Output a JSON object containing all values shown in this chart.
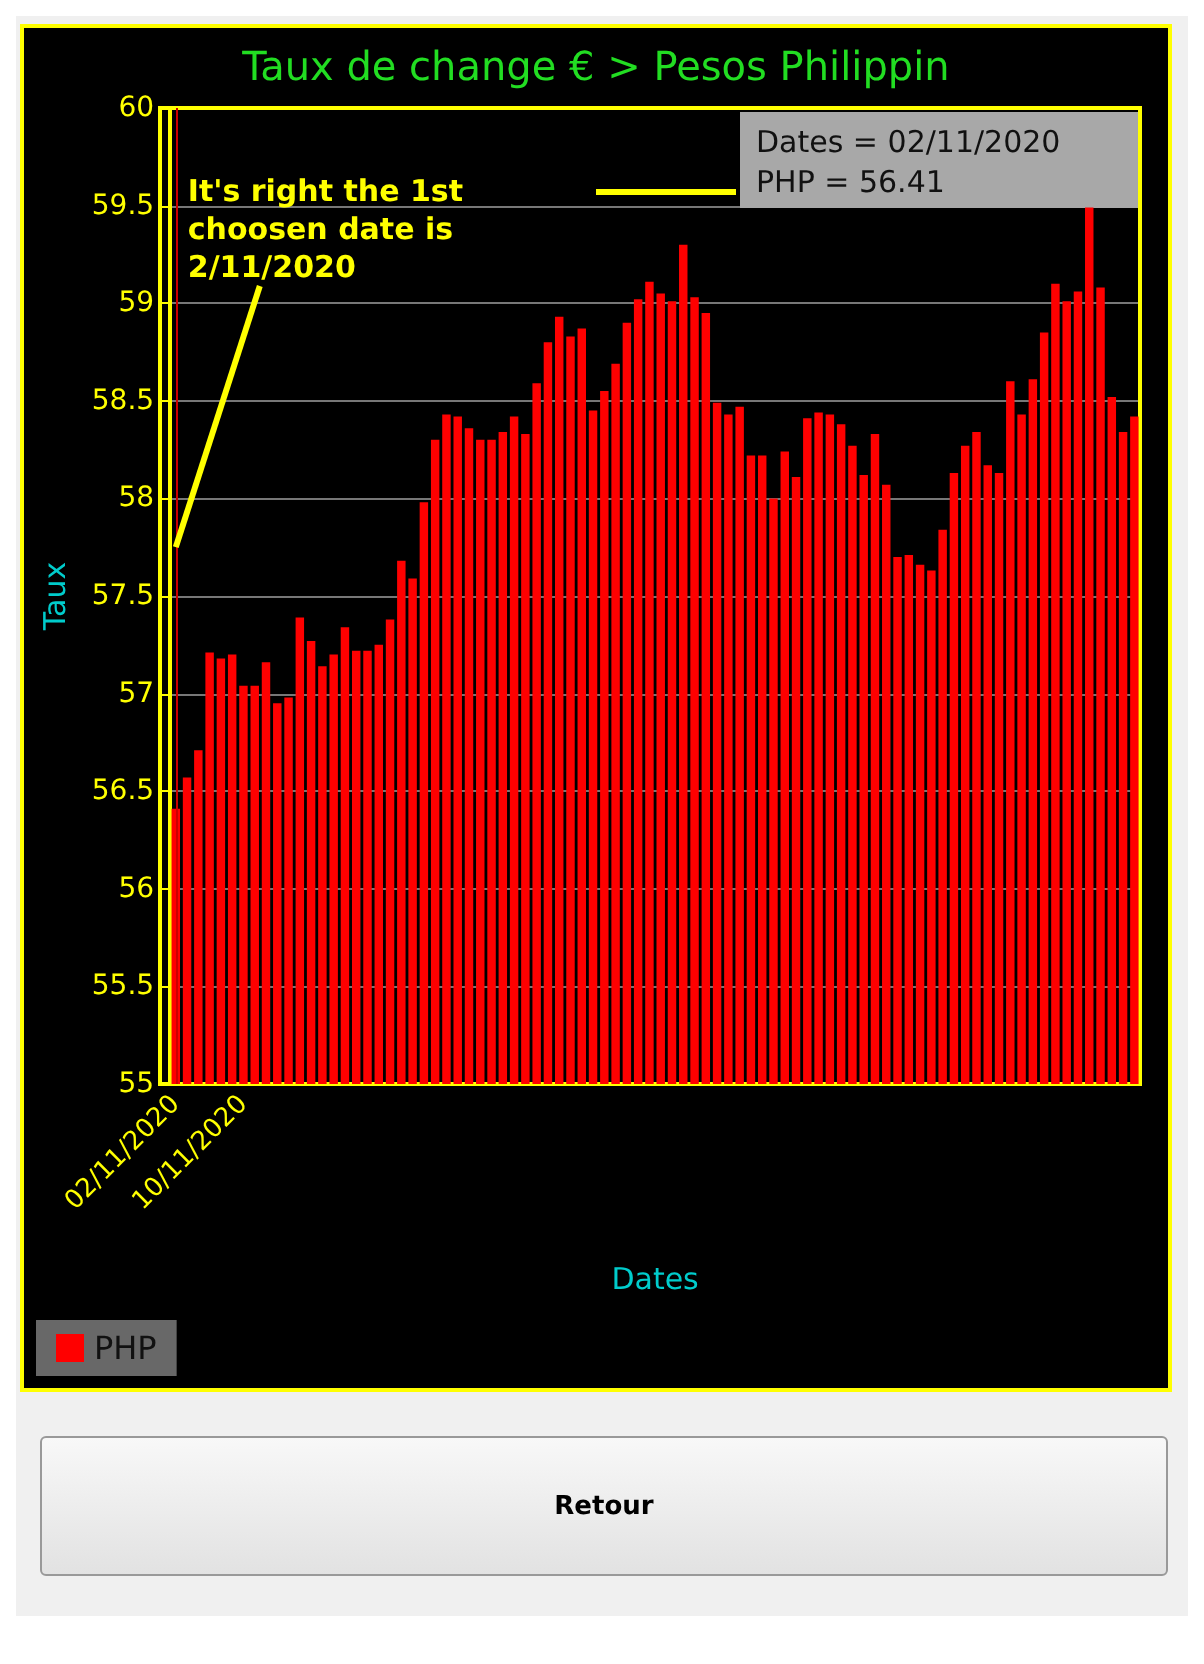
{
  "chart_data": {
    "type": "bar",
    "title": "Taux de change € > Pesos Philippin",
    "xlabel": "Dates",
    "ylabel": "Taux",
    "categories": [
      "02/11/2020",
      null,
      null,
      null,
      null,
      null,
      "10/11/2020",
      null,
      null,
      null,
      null,
      null,
      null,
      null,
      null,
      null,
      null,
      null,
      null,
      null,
      null,
      null,
      null,
      null,
      null,
      null,
      null,
      null,
      null,
      null,
      null,
      null,
      null,
      null,
      null,
      null,
      null,
      null,
      null,
      null,
      null,
      null,
      null,
      null,
      null,
      null,
      null,
      null,
      null,
      null,
      null,
      null,
      null,
      null,
      null,
      null,
      null,
      null,
      null,
      null,
      null,
      null,
      null,
      null,
      null,
      null,
      null,
      null,
      null,
      null,
      null,
      null,
      null,
      null,
      null,
      null,
      null,
      null,
      null,
      null,
      null,
      null,
      null,
      null,
      null,
      null
    ],
    "series": [
      {
        "name": "PHP",
        "color": "#ff0000",
        "values": [
          56.41,
          56.57,
          56.71,
          57.21,
          57.18,
          57.2,
          57.04,
          57.04,
          57.16,
          56.95,
          56.98,
          57.39,
          57.27,
          57.14,
          57.2,
          57.34,
          57.22,
          57.22,
          57.25,
          57.38,
          57.68,
          57.59,
          57.98,
          58.3,
          58.43,
          58.42,
          58.36,
          58.3,
          58.3,
          58.34,
          58.42,
          58.33,
          58.59,
          58.8,
          58.93,
          58.83,
          58.87,
          58.45,
          58.55,
          58.69,
          58.9,
          59.02,
          59.11,
          59.05,
          59.01,
          59.3,
          59.03,
          58.95,
          58.49,
          58.43,
          58.47,
          58.22,
          58.22,
          58.0,
          58.24,
          58.11,
          58.41,
          58.44,
          58.43,
          58.38,
          58.27,
          58.12,
          58.33,
          58.07,
          57.7,
          57.71,
          57.66,
          57.63,
          57.84,
          58.13,
          58.27,
          58.34,
          58.17,
          58.13,
          58.6,
          58.43,
          58.61,
          58.85,
          59.1,
          59.01,
          59.06,
          59.49,
          59.08,
          58.52,
          58.34,
          58.42
        ]
      }
    ],
    "ylim": [
      55,
      60
    ],
    "yticks": [
      55,
      55.5,
      56,
      56.5,
      57,
      57.5,
      58,
      58.5,
      59,
      59.5,
      60
    ],
    "grid": "y",
    "legend": "bottom",
    "ref_lines": [
      {
        "axis": "x",
        "value": "02/11/2020",
        "color": "#cc0000"
      }
    ],
    "annotations": [
      {
        "text": "It's right the 1st\nchoosen date is\n2/11/2020",
        "x": "02/11/2020",
        "y": 57.75
      },
      "Dates = 02/11/2020\nPHP = 56.41",
      "Retour"
    ]
  }
}
